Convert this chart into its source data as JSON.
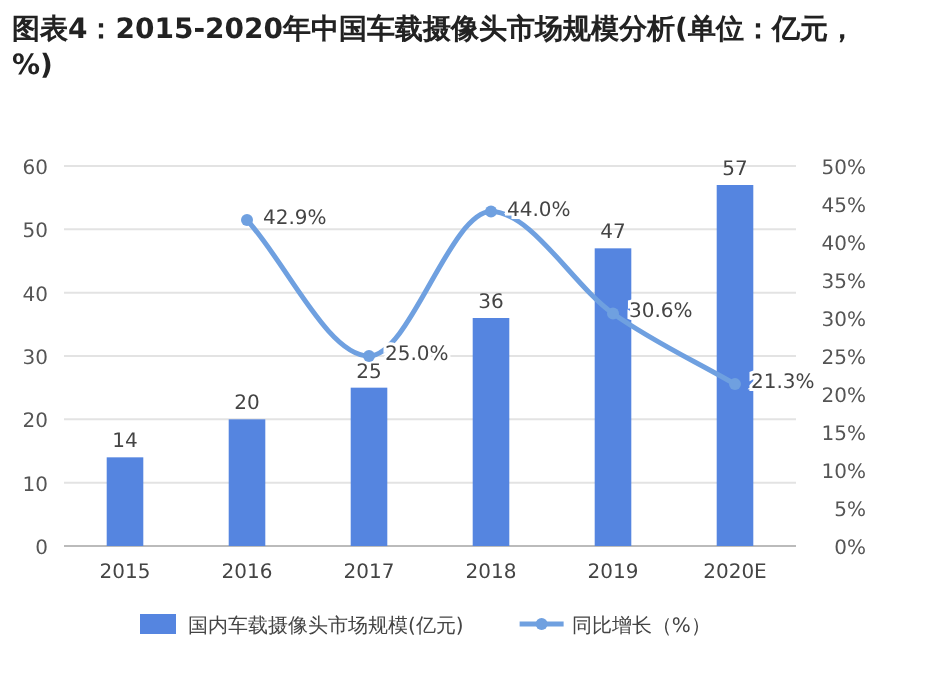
{
  "chart_data": {
    "type": "bar",
    "title": "图表4：2015-2020年中国车载摄像头市场规模分析(单位：亿元，%)",
    "categories": [
      "2015",
      "2016",
      "2017",
      "2018",
      "2019",
      "2020E"
    ],
    "series": [
      {
        "name": "国内车载摄像头市场规模(亿元)",
        "color": "#5585e0",
        "values": [
          14,
          20,
          25,
          36,
          47,
          57
        ]
      },
      {
        "name": "同比增长（%）",
        "type": "line",
        "axis": "y2",
        "color": "#6fa0e0",
        "values": [
          null,
          42.9,
          25.0,
          44.0,
          30.6,
          21.3
        ],
        "value_labels": [
          null,
          "42.9%",
          "25.0%",
          "44.0%",
          "30.6%",
          "21.3%"
        ]
      }
    ],
    "data_labels": true,
    "ylim": [
      0,
      60
    ],
    "yticks": [
      0,
      10,
      20,
      30,
      40,
      50,
      60
    ],
    "y2lim": [
      0,
      50
    ],
    "y2ticks": [
      {
        "value": 0,
        "label": "0%"
      },
      {
        "value": 5,
        "label": "5%"
      },
      {
        "value": 10,
        "label": "10%"
      },
      {
        "value": 15,
        "label": "15%"
      },
      {
        "value": 20,
        "label": "20%"
      },
      {
        "value": 25,
        "label": "25%"
      },
      {
        "value": 30,
        "label": "30%"
      },
      {
        "value": 35,
        "label": "35%"
      },
      {
        "value": 40,
        "label": "40%"
      },
      {
        "value": 45,
        "label": "45%"
      },
      {
        "value": 50,
        "label": "50%"
      }
    ],
    "grid": "y",
    "legend": "bottom",
    "marker": "circle",
    "line_style": "solid"
  }
}
